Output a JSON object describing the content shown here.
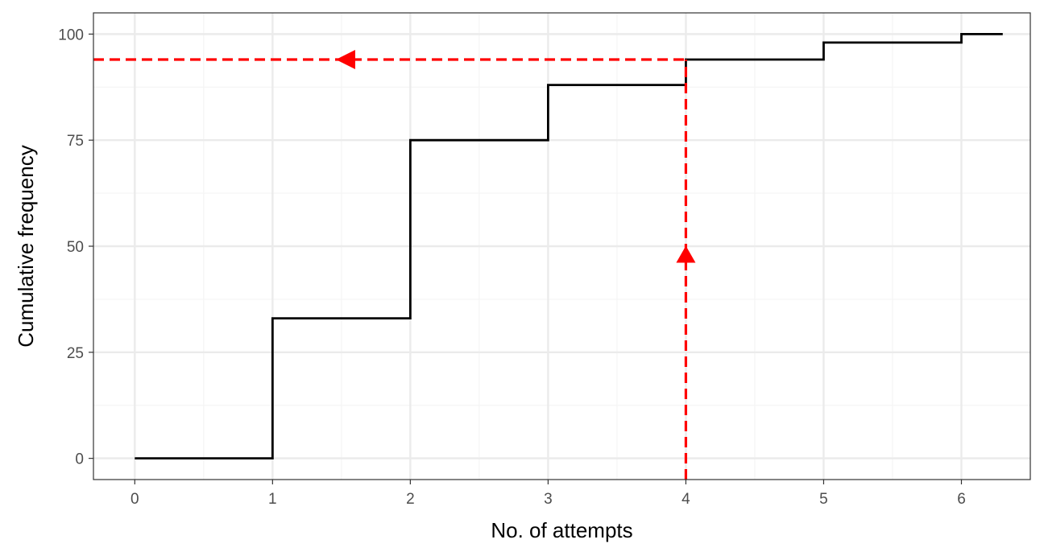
{
  "chart_data": {
    "type": "line",
    "subtype": "step",
    "title": "",
    "xlabel": "No. of attempts",
    "ylabel": "Cumulative frequency",
    "xlim": [
      -0.3,
      6.5
    ],
    "ylim": [
      -5,
      105
    ],
    "x_ticks": [
      0,
      1,
      2,
      3,
      4,
      5,
      6
    ],
    "x_tick_labels": [
      "0",
      "1",
      "2",
      "3",
      "4",
      "5",
      "6"
    ],
    "x_minor_ticks": [
      0.5,
      1.5,
      2.5,
      3.5,
      4.5,
      5.5
    ],
    "y_ticks": [
      0,
      25,
      50,
      75,
      100
    ],
    "y_tick_labels": [
      "0",
      "25",
      "50",
      "75",
      "100"
    ],
    "y_minor_ticks": [
      12.5,
      37.5,
      62.5,
      87.5
    ],
    "grid": true,
    "legend": "none",
    "series": [
      {
        "x": [
          0,
          1,
          2,
          3,
          4,
          5,
          6,
          6.3
        ],
        "y": [
          0,
          33,
          75,
          88,
          94,
          98,
          100,
          100
        ],
        "step": "post",
        "color": "#000000"
      }
    ],
    "annotations": [
      {
        "kind": "vertical-guide",
        "x": 4,
        "y_from": -5,
        "y_to": 94,
        "arrow_at_y": 48,
        "arrow_direction": "up",
        "color": "#ff0000",
        "dashed": true
      },
      {
        "kind": "horizontal-guide",
        "y": 94,
        "x_from": 4,
        "x_to": -0.3,
        "arrow_at_x": 1.6,
        "arrow_direction": "left",
        "color": "#ff0000",
        "dashed": true
      }
    ],
    "colors": {
      "line": "#000000",
      "guide": "#ff0000",
      "grid_major": "#ebebeb",
      "grid_minor": "#f5f5f5",
      "panel_border": "#333333",
      "tick_text": "#4d4d4d"
    }
  }
}
